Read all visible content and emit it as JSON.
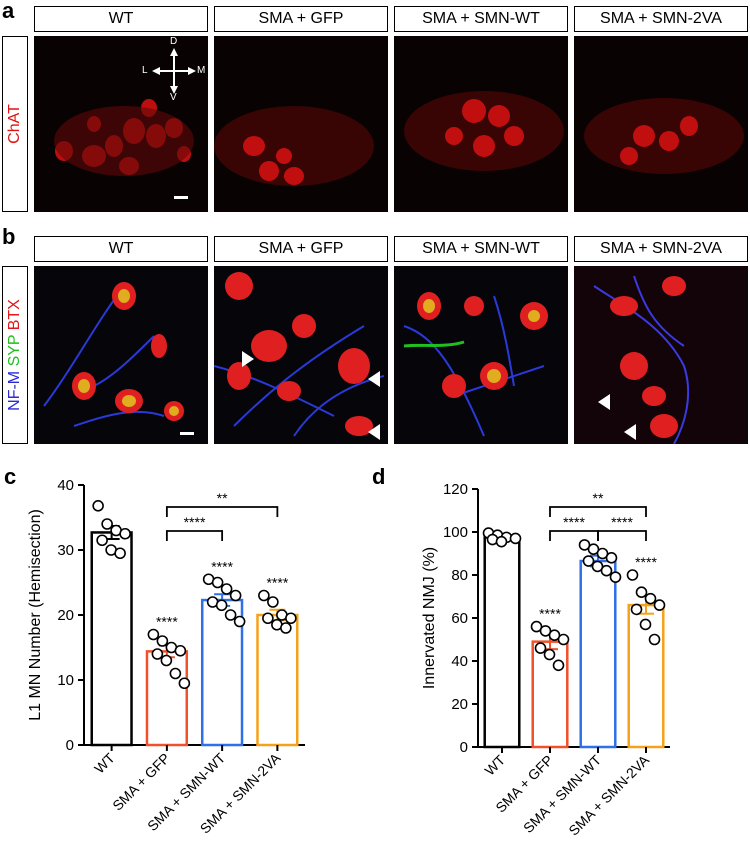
{
  "panel_a": {
    "letter": "a",
    "row_label": "ChAT",
    "headers": [
      "WT",
      "SMA + GFP",
      "SMA + SMN-WT",
      "SMA + SMN-2VA"
    ],
    "compass": {
      "d": "D",
      "v": "V",
      "l": "L",
      "m": "M"
    }
  },
  "panel_b": {
    "letter": "b",
    "row_label_parts": [
      {
        "text": "NF-M",
        "color": "#2a2ad8"
      },
      {
        "text": " SYP",
        "color": "#1fbf1f"
      },
      {
        "text": " BTX",
        "color": "#e01818"
      }
    ],
    "headers": [
      "WT",
      "SMA + GFP",
      "SMA + SMN-WT",
      "SMA + SMN-2VA"
    ]
  },
  "colors": {
    "chat_red": "#e01414",
    "wt": "#000000",
    "sma_gfp": "#f0502a",
    "sma_smn_wt": "#2f6fe8",
    "sma_smn_2va": "#f5a21a"
  },
  "chart_data": [
    {
      "type": "bar",
      "panel": "c",
      "ylabel": "L1 MN Number (Hemisection)",
      "ylim": [
        0,
        40
      ],
      "yticks": [
        0,
        10,
        20,
        30,
        40
      ],
      "categories": [
        "WT",
        "SMA + GFP",
        "SMA + SMN-WT",
        "SMA + SMN-2VA"
      ],
      "values": [
        32.7,
        14.4,
        22.3,
        20.0
      ],
      "sem": [
        1.0,
        0.9,
        0.9,
        0.8
      ],
      "points": [
        [
          36.8,
          34.0,
          33.0,
          32.5,
          31.5,
          30.0,
          29.5
        ],
        [
          17.0,
          16.0,
          15.0,
          14.5,
          14.0,
          13.0,
          11.0,
          9.5
        ],
        [
          25.5,
          25.0,
          24.0,
          23.0,
          22.0,
          21.5,
          20.0,
          19.0
        ],
        [
          23.0,
          22.0,
          20.0,
          19.5,
          19.5,
          18.5,
          18.0
        ]
      ],
      "significance": [
        "",
        "****",
        "****",
        "****"
      ],
      "comparisons": [
        {
          "from": 1,
          "to": 2,
          "label": "****"
        },
        {
          "from": 1,
          "to": 3,
          "label": "**"
        }
      ]
    },
    {
      "type": "bar",
      "panel": "d",
      "ylabel": "Innervated NMJ (%)",
      "ylim": [
        0,
        120
      ],
      "yticks": [
        0,
        20,
        40,
        60,
        80,
        100,
        120
      ],
      "categories": [
        "WT",
        "SMA + GFP",
        "SMA + SMN-WT",
        "SMA + SMN-2VA"
      ],
      "values": [
        97.5,
        49.0,
        86.5,
        66.0
      ],
      "sem": [
        1.0,
        3.5,
        2.5,
        4.0
      ],
      "points": [
        [
          99.5,
          98.5,
          97.5,
          97.0,
          96.5,
          95.5
        ],
        [
          56.0,
          54.0,
          52.0,
          50.0,
          46.0,
          43.0,
          38.0
        ],
        [
          94.0,
          92.0,
          90.0,
          88.0,
          86.5,
          84.0,
          82.0,
          79.0
        ],
        [
          80.0,
          72.0,
          69.0,
          66.0,
          64.0,
          57.0,
          50.0
        ]
      ],
      "significance": [
        "",
        "****",
        "",
        "****"
      ],
      "comparisons": [
        {
          "from": 1,
          "to": 2,
          "label": "****"
        },
        {
          "from": 2,
          "to": 3,
          "label": "****"
        },
        {
          "from": 1,
          "to": 3,
          "label": "**"
        }
      ]
    }
  ]
}
